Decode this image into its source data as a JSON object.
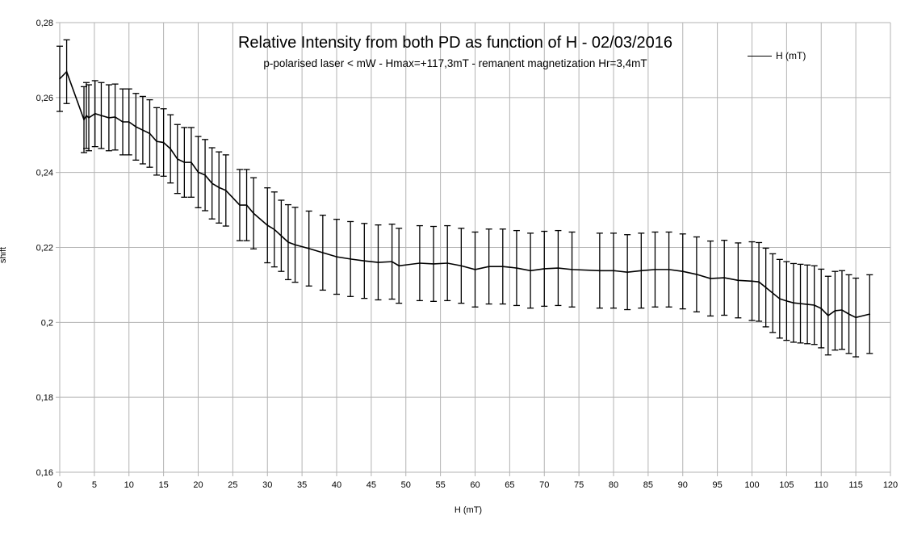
{
  "chart_data": {
    "type": "line",
    "title": "Relative Intensity from both PD as function of H - 02/03/2016",
    "subtitle": "p-polarised laser < mW - Hmax=+117,3mT - remanent magnetization Hr=3,4mT",
    "xlabel": "H (mT)",
    "ylabel": "shift",
    "xlim": [
      0,
      120
    ],
    "ylim": [
      0.16,
      0.28
    ],
    "grid": true,
    "legend_placement": "top-right",
    "x_ticks": [
      0,
      5,
      10,
      15,
      20,
      25,
      30,
      35,
      40,
      45,
      50,
      55,
      60,
      65,
      70,
      75,
      80,
      85,
      90,
      95,
      100,
      105,
      110,
      115,
      120
    ],
    "y_ticks": [
      "0,16",
      "0,18",
      "0,2",
      "0,22",
      "0,24",
      "0,26",
      "0,28"
    ],
    "series": [
      {
        "name": "H (mT)",
        "color": "#000000",
        "x": [
          0,
          1,
          3.5,
          3.85,
          4.2,
          5.1,
          6,
          7.1,
          8,
          9.1,
          10,
          11,
          12,
          13,
          14,
          15,
          16,
          17,
          18,
          19,
          20,
          21,
          22,
          23,
          24,
          26,
          27,
          28,
          30,
          31,
          32,
          33,
          34,
          36,
          38,
          40,
          42,
          44,
          46,
          48,
          49,
          52,
          54,
          56,
          58,
          60,
          62,
          64,
          66,
          68,
          70,
          72,
          74,
          78,
          80,
          82,
          84,
          86,
          88,
          90,
          92,
          94,
          96,
          98,
          100,
          101,
          102,
          103,
          104,
          105,
          106,
          107,
          108,
          109,
          110,
          111,
          112,
          113,
          114,
          115,
          117
        ],
        "y": [
          0.265,
          0.2669,
          0.2541,
          0.2552,
          0.2546,
          0.2557,
          0.2552,
          0.2546,
          0.2548,
          0.2535,
          0.2535,
          0.2522,
          0.2513,
          0.2504,
          0.2483,
          0.248,
          0.2463,
          0.2436,
          0.2427,
          0.2427,
          0.2401,
          0.2393,
          0.2371,
          0.236,
          0.2352,
          0.2313,
          0.2313,
          0.2291,
          0.2259,
          0.2248,
          0.2231,
          0.2214,
          0.2207,
          0.2197,
          0.2186,
          0.2175,
          0.2169,
          0.2164,
          0.216,
          0.2162,
          0.2151,
          0.2158,
          0.2156,
          0.2158,
          0.2151,
          0.2141,
          0.2149,
          0.2149,
          0.2145,
          0.2138,
          0.2143,
          0.2145,
          0.2141,
          0.2138,
          0.2138,
          0.2134,
          0.2138,
          0.2141,
          0.2141,
          0.2136,
          0.2128,
          0.2117,
          0.2119,
          0.2112,
          0.211,
          0.2108,
          0.2093,
          0.2078,
          0.2063,
          0.2057,
          0.2052,
          0.205,
          0.2048,
          0.2046,
          0.2037,
          0.2018,
          0.2031,
          0.2033,
          0.2022,
          0.2013,
          0.2022
        ],
        "error": [
          0.0087,
          0.0085,
          0.0088,
          0.0088,
          0.0088,
          0.0088,
          0.0088,
          0.0088,
          0.0088,
          0.0088,
          0.0088,
          0.0089,
          0.009,
          0.009,
          0.009,
          0.009,
          0.0091,
          0.0092,
          0.0093,
          0.0093,
          0.0095,
          0.0095,
          0.0095,
          0.0095,
          0.0095,
          0.0095,
          0.0095,
          0.0095,
          0.01,
          0.01,
          0.0095,
          0.01,
          0.01,
          0.01,
          0.01,
          0.01,
          0.01,
          0.01,
          0.01,
          0.01,
          0.01,
          0.01,
          0.01,
          0.01,
          0.01,
          0.01,
          0.01,
          0.01,
          0.01,
          0.01,
          0.01,
          0.01,
          0.01,
          0.01,
          0.01,
          0.01,
          0.01,
          0.01,
          0.01,
          0.01,
          0.01,
          0.01,
          0.01,
          0.01,
          0.0105,
          0.0105,
          0.0105,
          0.0105,
          0.0105,
          0.0105,
          0.0105,
          0.0105,
          0.0105,
          0.0105,
          0.0105,
          0.0105,
          0.0105,
          0.0105,
          0.0105,
          0.0105,
          0.0105
        ]
      }
    ]
  }
}
